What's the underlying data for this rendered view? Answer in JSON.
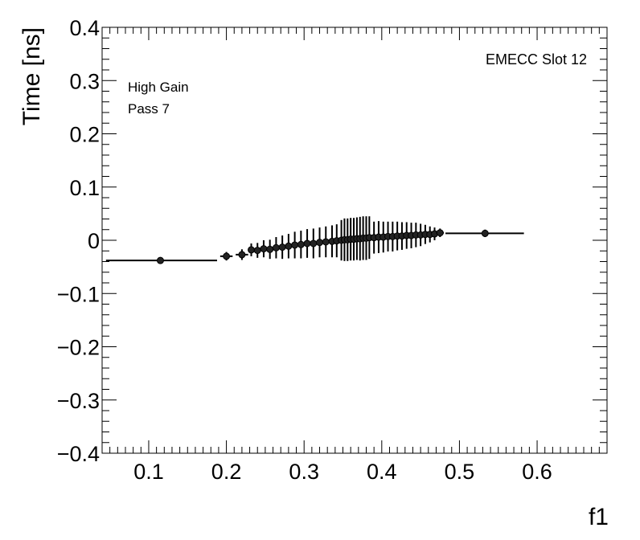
{
  "chart_data": {
    "type": "scatter",
    "title": "",
    "xlabel": "f1",
    "ylabel": "Time [ns]",
    "xlim": [
      0.04,
      0.69
    ],
    "ylim": [
      -0.4,
      0.4
    ],
    "grid": false,
    "annotations": {
      "top_right": "EMECC Slot 12",
      "line1": "High Gain",
      "line2": "Pass 7"
    },
    "x_ticks": [
      0.1,
      0.2,
      0.3,
      0.4,
      0.5,
      0.6
    ],
    "x_tick_labels": [
      "0.1",
      "0.2",
      "0.3",
      "0.4",
      "0.5",
      "0.6"
    ],
    "y_ticks": [
      -0.4,
      -0.3,
      -0.2,
      -0.1,
      0,
      0.1,
      0.2,
      0.3,
      0.4
    ],
    "y_tick_labels": [
      "−0.4",
      "−0.3",
      "−0.2",
      "−0.1",
      "0",
      "0.1",
      "0.2",
      "0.3",
      "0.4"
    ],
    "points": [
      {
        "x": 0.115,
        "y": -0.038,
        "x_lo": 0.045,
        "x_hi": 0.188,
        "err": 0.003
      },
      {
        "x": 0.2,
        "y": -0.03,
        "x_lo": 0.192,
        "x_hi": 0.208,
        "err": 0.008
      },
      {
        "x": 0.22,
        "y": -0.027,
        "x_lo": 0.212,
        "x_hi": 0.228,
        "err": 0.01
      },
      {
        "x": 0.232,
        "y": -0.018,
        "err": 0.012
      },
      {
        "x": 0.24,
        "y": -0.019,
        "err": 0.014
      },
      {
        "x": 0.248,
        "y": -0.016,
        "err": 0.016
      },
      {
        "x": 0.256,
        "y": -0.017,
        "err": 0.018
      },
      {
        "x": 0.264,
        "y": -0.014,
        "err": 0.02
      },
      {
        "x": 0.272,
        "y": -0.013,
        "err": 0.022
      },
      {
        "x": 0.28,
        "y": -0.011,
        "err": 0.023
      },
      {
        "x": 0.288,
        "y": -0.009,
        "err": 0.025
      },
      {
        "x": 0.296,
        "y": -0.008,
        "err": 0.026
      },
      {
        "x": 0.304,
        "y": -0.006,
        "err": 0.027
      },
      {
        "x": 0.312,
        "y": -0.006,
        "err": 0.028
      },
      {
        "x": 0.32,
        "y": -0.004,
        "err": 0.028
      },
      {
        "x": 0.328,
        "y": -0.003,
        "err": 0.029
      },
      {
        "x": 0.336,
        "y": -0.002,
        "err": 0.03
      },
      {
        "x": 0.342,
        "y": -0.001,
        "err": 0.031
      },
      {
        "x": 0.348,
        "y": 0.0,
        "err": 0.038
      },
      {
        "x": 0.352,
        "y": 0.001,
        "err": 0.04
      },
      {
        "x": 0.356,
        "y": 0.001,
        "err": 0.04
      },
      {
        "x": 0.36,
        "y": 0.002,
        "err": 0.04
      },
      {
        "x": 0.364,
        "y": 0.002,
        "err": 0.04
      },
      {
        "x": 0.368,
        "y": 0.003,
        "err": 0.04
      },
      {
        "x": 0.372,
        "y": 0.003,
        "err": 0.041
      },
      {
        "x": 0.376,
        "y": 0.004,
        "err": 0.041
      },
      {
        "x": 0.38,
        "y": 0.004,
        "err": 0.041
      },
      {
        "x": 0.384,
        "y": 0.005,
        "err": 0.04
      },
      {
        "x": 0.39,
        "y": 0.005,
        "err": 0.03
      },
      {
        "x": 0.396,
        "y": 0.006,
        "err": 0.03
      },
      {
        "x": 0.402,
        "y": 0.006,
        "err": 0.029
      },
      {
        "x": 0.408,
        "y": 0.007,
        "err": 0.028
      },
      {
        "x": 0.414,
        "y": 0.007,
        "err": 0.028
      },
      {
        "x": 0.42,
        "y": 0.008,
        "err": 0.027
      },
      {
        "x": 0.426,
        "y": 0.008,
        "err": 0.026
      },
      {
        "x": 0.432,
        "y": 0.009,
        "err": 0.025
      },
      {
        "x": 0.438,
        "y": 0.009,
        "err": 0.024
      },
      {
        "x": 0.444,
        "y": 0.01,
        "err": 0.023
      },
      {
        "x": 0.45,
        "y": 0.01,
        "err": 0.021
      },
      {
        "x": 0.456,
        "y": 0.011,
        "err": 0.018
      },
      {
        "x": 0.462,
        "y": 0.011,
        "err": 0.015
      },
      {
        "x": 0.468,
        "y": 0.012,
        "err": 0.012
      },
      {
        "x": 0.475,
        "y": 0.014,
        "x_lo": 0.47,
        "x_hi": 0.48,
        "err": 0.008
      },
      {
        "x": 0.533,
        "y": 0.013,
        "x_lo": 0.482,
        "x_hi": 0.583,
        "err": 0.007
      }
    ]
  }
}
